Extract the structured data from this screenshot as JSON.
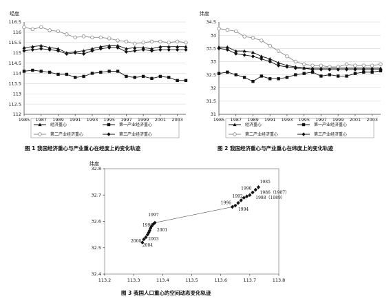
{
  "chart_data": [
    {
      "type": "line",
      "ylabel": "经度",
      "ylim": [
        112,
        116.5
      ],
      "yticks": [
        "112",
        "112.5",
        "113",
        "113.5",
        "114",
        "114.5",
        "115",
        "115.5",
        "116",
        "116.5"
      ],
      "xlim": [
        1985,
        2004
      ],
      "xticks": [
        "1985",
        "1987",
        "1989",
        "1991",
        "1993",
        "1995",
        "1997",
        "1999",
        "2001",
        "2003"
      ],
      "x": [
        1985,
        1986,
        1987,
        1988,
        1989,
        1990,
        1991,
        1992,
        1993,
        1994,
        1995,
        1996,
        1997,
        1998,
        1999,
        2000,
        2001,
        2002,
        2003,
        2004
      ],
      "series": [
        {
          "name": "经济重心",
          "marker": "triangle",
          "color": "#111111",
          "values": [
            115.25,
            115.3,
            115.35,
            115.25,
            115.2,
            115.0,
            115.05,
            115.1,
            115.2,
            115.3,
            115.35,
            115.35,
            115.2,
            115.25,
            115.25,
            115.2,
            115.3,
            115.3,
            115.3,
            115.3
          ]
        },
        {
          "name": "第一产业经济重心",
          "marker": "square",
          "color": "#111111",
          "values": [
            114.1,
            114.15,
            114.1,
            114.05,
            113.95,
            113.95,
            113.8,
            113.85,
            114.0,
            114.05,
            114.1,
            114.1,
            113.85,
            113.8,
            113.85,
            113.75,
            113.85,
            113.8,
            113.65,
            113.65
          ]
        },
        {
          "name": "第二产业经济重心",
          "marker": "circle",
          "color": "#888888",
          "values": [
            116.25,
            116.15,
            116.25,
            116.1,
            116.05,
            115.9,
            115.75,
            115.8,
            115.75,
            115.75,
            115.7,
            115.6,
            115.55,
            115.45,
            115.5,
            115.55,
            115.55,
            115.5,
            115.55,
            115.5
          ]
        },
        {
          "name": "第三产业经济重心",
          "marker": "diamond",
          "color": "#111111",
          "values": [
            115.1,
            115.15,
            115.2,
            115.15,
            115.1,
            114.95,
            115.0,
            114.95,
            115.1,
            115.2,
            115.25,
            115.25,
            115.05,
            115.1,
            115.15,
            115.1,
            115.15,
            115.15,
            115.15,
            115.15
          ]
        }
      ],
      "caption": "图 1  我国经济重心与产业重心在经度上的变化轨迹",
      "legend_position": "bottom"
    },
    {
      "type": "line",
      "ylabel": "纬度",
      "ylim": [
        31,
        34.5
      ],
      "yticks": [
        "31",
        "31.5",
        "32",
        "32.5",
        "33",
        "33.5",
        "34",
        "34.5"
      ],
      "xlim": [
        1985,
        2004
      ],
      "xticks": [
        "1985",
        "1987",
        "1989",
        "1991",
        "1993",
        "1995",
        "1997",
        "1999",
        "2001",
        "2003"
      ],
      "x": [
        1985,
        1986,
        1987,
        1988,
        1989,
        1990,
        1991,
        1992,
        1993,
        1994,
        1995,
        1996,
        1997,
        1998,
        1999,
        2000,
        2001,
        2002,
        2003,
        2004
      ],
      "series": [
        {
          "name": "经济重心",
          "marker": "triangle",
          "color": "#111111",
          "values": [
            33.55,
            33.55,
            33.4,
            33.4,
            33.35,
            33.2,
            33.1,
            32.95,
            32.85,
            32.8,
            32.75,
            32.75,
            32.75,
            32.75,
            32.75,
            32.75,
            32.75,
            32.75,
            32.75,
            32.75
          ]
        },
        {
          "name": "第一产业经济重心",
          "marker": "square",
          "color": "#111111",
          "values": [
            32.55,
            32.6,
            32.5,
            32.4,
            32.25,
            32.45,
            32.35,
            32.35,
            32.4,
            32.5,
            32.55,
            32.6,
            32.45,
            32.5,
            32.45,
            32.45,
            32.55,
            32.6,
            32.6,
            32.65
          ]
        },
        {
          "name": "第二产业经济重心",
          "marker": "circle",
          "color": "#888888",
          "values": [
            34.25,
            34.2,
            34.15,
            33.95,
            33.9,
            33.8,
            33.6,
            33.4,
            33.2,
            33.0,
            32.9,
            32.85,
            32.85,
            32.8,
            32.8,
            32.9,
            32.85,
            32.85,
            32.85,
            32.9
          ]
        },
        {
          "name": "第三产业经济重心",
          "marker": "diamond",
          "color": "#111111",
          "values": [
            33.5,
            33.45,
            33.3,
            33.25,
            33.2,
            33.1,
            33.0,
            32.85,
            32.8,
            32.75,
            32.75,
            32.7,
            32.7,
            32.7,
            32.7,
            32.7,
            32.7,
            32.7,
            32.7,
            32.7
          ]
        }
      ],
      "caption": "图 2  我国经济重心与产业重心在纬度上的变化轨迹",
      "legend_position": "bottom"
    },
    {
      "type": "scatter",
      "ylabel": "纬度",
      "xlim": [
        113.2,
        113.8
      ],
      "ylim": [
        32.4,
        32.8
      ],
      "xticks": [
        "113.2",
        "113.3",
        "113.4",
        "113.5",
        "113.6",
        "113.7",
        "113.8"
      ],
      "yticks": [
        "32.4",
        "32.5",
        "32.6",
        "32.7",
        "32.8"
      ],
      "points": [
        {
          "x": 113.73,
          "y": 32.73
        },
        {
          "x": 113.72,
          "y": 32.72
        },
        {
          "x": 113.71,
          "y": 32.71
        },
        {
          "x": 113.7,
          "y": 32.7
        },
        {
          "x": 113.69,
          "y": 32.695
        },
        {
          "x": 113.68,
          "y": 32.69
        },
        {
          "x": 113.67,
          "y": 32.68
        },
        {
          "x": 113.66,
          "y": 32.67
        },
        {
          "x": 113.65,
          "y": 32.66
        },
        {
          "x": 113.64,
          "y": 32.655
        },
        {
          "x": 113.373,
          "y": 32.595
        },
        {
          "x": 113.368,
          "y": 32.59
        },
        {
          "x": 113.362,
          "y": 32.582
        },
        {
          "x": 113.358,
          "y": 32.574
        },
        {
          "x": 113.355,
          "y": 32.565
        },
        {
          "x": 113.352,
          "y": 32.558
        },
        {
          "x": 113.348,
          "y": 32.55
        },
        {
          "x": 113.342,
          "y": 32.54
        },
        {
          "x": 113.335,
          "y": 32.532
        },
        {
          "x": 113.33,
          "y": 32.52
        }
      ],
      "labels": [
        {
          "text": "1985",
          "x": 113.735,
          "y": 32.745
        },
        {
          "text": "1990",
          "x": 113.67,
          "y": 32.72
        },
        {
          "text": "1986（1987）",
          "x": 113.735,
          "y": 32.705
        },
        {
          "text": "1992",
          "x": 113.64,
          "y": 32.69
        },
        {
          "text": "1988（1989）",
          "x": 113.72,
          "y": 32.685
        },
        {
          "text": "1996",
          "x": 113.6,
          "y": 32.665
        },
        {
          "text": "1994",
          "x": 113.66,
          "y": 32.64
        },
        {
          "text": "1997",
          "x": 113.35,
          "y": 32.62
        },
        {
          "text": "1999",
          "x": 113.33,
          "y": 32.58
        },
        {
          "text": "2001",
          "x": 113.38,
          "y": 32.562
        },
        {
          "text": "2003",
          "x": 113.35,
          "y": 32.528
        },
        {
          "text": "2000",
          "x": 113.29,
          "y": 32.52
        },
        {
          "text": "2004",
          "x": 113.33,
          "y": 32.505
        }
      ],
      "caption": "图 3  我国人口重心的空间动态变化轨迹"
    }
  ]
}
